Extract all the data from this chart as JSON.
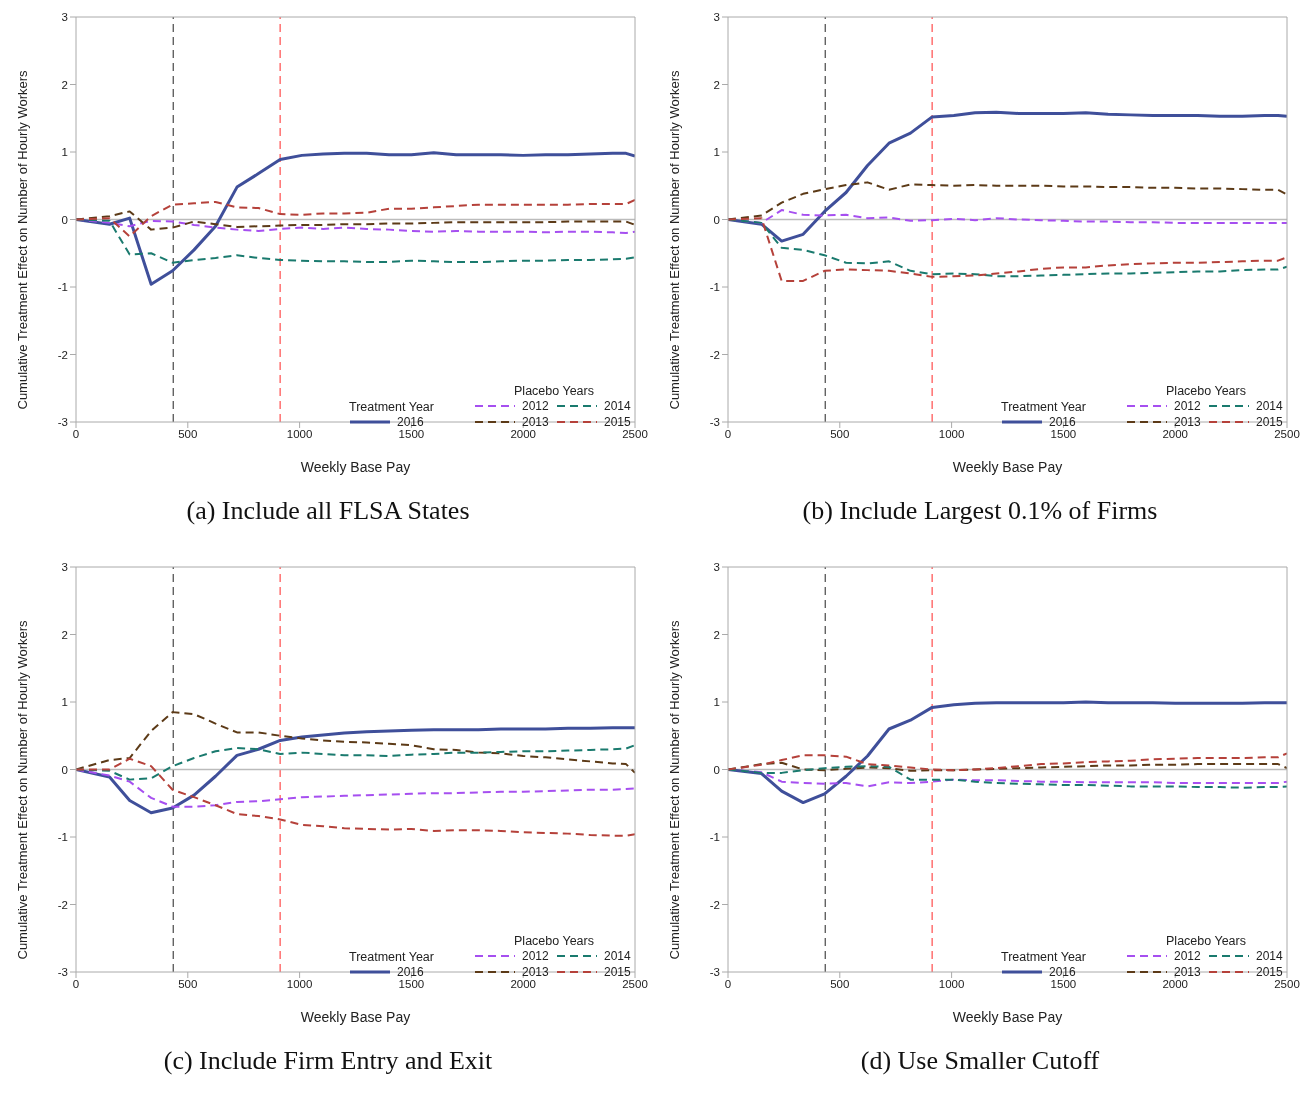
{
  "chart_data": [
    {
      "type": "line",
      "title": "(a) Include all FLSA States",
      "xlabel": "Weekly Base Pay",
      "ylabel": "Cumulative Treatment Effect on Number of Hourly Workers",
      "annotations": [
        "Treatment Year",
        "Placebo Years"
      ],
      "x": [
        0,
        150,
        240,
        336,
        432,
        528,
        624,
        720,
        816,
        913,
        1010,
        1105,
        1200,
        1300,
        1400,
        1500,
        1600,
        1700,
        1800,
        1900,
        2000,
        2100,
        2200,
        2300,
        2400,
        2460,
        2500
      ],
      "series": [
        {
          "name": "2016",
          "color": "#3f4f9a",
          "line_style": "solid",
          "values": [
            0,
            -0.07,
            0.02,
            -0.96,
            -0.76,
            -0.45,
            -0.1,
            0.48,
            0.68,
            0.89,
            0.95,
            0.97,
            0.98,
            0.98,
            0.96,
            0.96,
            0.99,
            0.96,
            0.96,
            0.96,
            0.95,
            0.96,
            0.96,
            0.97,
            0.98,
            0.98,
            0.94
          ]
        },
        {
          "name": "2012",
          "color": "#a64ff0",
          "line_style": "dashed",
          "values": [
            0,
            -0.05,
            -0.1,
            -0.02,
            -0.03,
            -0.08,
            -0.12,
            -0.15,
            -0.17,
            -0.14,
            -0.12,
            -0.14,
            -0.12,
            -0.14,
            -0.15,
            -0.17,
            -0.18,
            -0.17,
            -0.18,
            -0.18,
            -0.18,
            -0.19,
            -0.18,
            -0.18,
            -0.19,
            -0.2,
            -0.18
          ]
        },
        {
          "name": "2013",
          "color": "#5c3a17",
          "line_style": "dashed",
          "values": [
            0,
            0.05,
            0.12,
            -0.15,
            -0.12,
            -0.03,
            -0.07,
            -0.11,
            -0.1,
            -0.09,
            -0.08,
            -0.08,
            -0.07,
            -0.07,
            -0.06,
            -0.06,
            -0.05,
            -0.04,
            -0.04,
            -0.04,
            -0.04,
            -0.04,
            -0.03,
            -0.03,
            -0.03,
            -0.03,
            -0.08
          ]
        },
        {
          "name": "2014",
          "color": "#1a7a6e",
          "line_style": "dashed",
          "values": [
            0,
            -0.02,
            -0.52,
            -0.5,
            -0.64,
            -0.6,
            -0.57,
            -0.53,
            -0.57,
            -0.6,
            -0.61,
            -0.62,
            -0.62,
            -0.63,
            -0.63,
            -0.61,
            -0.62,
            -0.63,
            -0.63,
            -0.62,
            -0.61,
            -0.61,
            -0.6,
            -0.6,
            -0.59,
            -0.58,
            -0.56
          ]
        },
        {
          "name": "2015",
          "color": "#b5413a",
          "line_style": "dashed",
          "values": [
            0,
            0.02,
            -0.25,
            0.05,
            0.22,
            0.24,
            0.26,
            0.18,
            0.17,
            0.08,
            0.07,
            0.09,
            0.09,
            0.1,
            0.16,
            0.16,
            0.18,
            0.2,
            0.22,
            0.22,
            0.22,
            0.22,
            0.22,
            0.23,
            0.23,
            0.23,
            0.29
          ]
        }
      ],
      "ref_lines": [
        {
          "axis": "x",
          "value": 435,
          "color": "#555555",
          "line_style": "dashed"
        },
        {
          "axis": "x",
          "value": 913,
          "color": "#ff5a5a",
          "line_style": "dashed"
        },
        {
          "axis": "y",
          "value": 0,
          "color": "#bbbbbb",
          "line_style": "solid"
        }
      ],
      "xlim": [
        0,
        2500
      ],
      "xticks": [
        0,
        500,
        1000,
        1500,
        2000,
        2500
      ],
      "ylim": [
        -3,
        3
      ],
      "yticks": [
        -3,
        -2,
        -1,
        0,
        1,
        2,
        3
      ],
      "grid": false,
      "legend": "bottom right",
      "marker": "none"
    },
    {
      "type": "line",
      "title": "(b) Include Largest 0.1% of Firms",
      "xlabel": "Weekly Base Pay",
      "ylabel": "Cumulative Treatment Effect on Number of Hourly Workers",
      "annotations": [
        "Treatment Year",
        "Placebo Years"
      ],
      "x": [
        0,
        150,
        240,
        336,
        432,
        528,
        624,
        720,
        816,
        913,
        1010,
        1105,
        1200,
        1300,
        1400,
        1500,
        1600,
        1700,
        1800,
        1900,
        2000,
        2100,
        2200,
        2300,
        2400,
        2460,
        2500
      ],
      "series": [
        {
          "name": "2016",
          "color": "#3f4f9a",
          "line_style": "solid",
          "values": [
            0,
            -0.07,
            -0.32,
            -0.22,
            0.12,
            0.4,
            0.8,
            1.13,
            1.28,
            1.52,
            1.54,
            1.58,
            1.59,
            1.57,
            1.57,
            1.57,
            1.58,
            1.56,
            1.55,
            1.54,
            1.54,
            1.54,
            1.53,
            1.53,
            1.54,
            1.54,
            1.53
          ]
        },
        {
          "name": "2012",
          "color": "#a64ff0",
          "line_style": "dashed",
          "values": [
            0,
            -0.05,
            0.14,
            0.07,
            0.06,
            0.07,
            0.02,
            0.03,
            -0.02,
            -0.01,
            0.01,
            -0.01,
            0.02,
            0,
            -0.01,
            -0.02,
            -0.03,
            -0.03,
            -0.04,
            -0.04,
            -0.05,
            -0.05,
            -0.05,
            -0.05,
            -0.05,
            -0.05,
            -0.05
          ]
        },
        {
          "name": "2013",
          "color": "#5c3a17",
          "line_style": "dashed",
          "values": [
            0,
            0.06,
            0.25,
            0.38,
            0.45,
            0.51,
            0.55,
            0.44,
            0.52,
            0.51,
            0.5,
            0.51,
            0.5,
            0.5,
            0.5,
            0.49,
            0.49,
            0.48,
            0.48,
            0.47,
            0.47,
            0.46,
            0.46,
            0.45,
            0.44,
            0.44,
            0.37
          ]
        },
        {
          "name": "2014",
          "color": "#1a7a6e",
          "line_style": "dashed",
          "values": [
            0,
            -0.05,
            -0.42,
            -0.45,
            -0.53,
            -0.64,
            -0.65,
            -0.62,
            -0.76,
            -0.81,
            -0.8,
            -0.81,
            -0.84,
            -0.84,
            -0.83,
            -0.82,
            -0.81,
            -0.8,
            -0.8,
            -0.79,
            -0.78,
            -0.77,
            -0.77,
            -0.75,
            -0.74,
            -0.74,
            -0.7
          ]
        },
        {
          "name": "2015",
          "color": "#b5413a",
          "line_style": "dashed",
          "values": [
            0,
            0.02,
            -0.91,
            -0.91,
            -0.76,
            -0.74,
            -0.75,
            -0.76,
            -0.8,
            -0.85,
            -0.84,
            -0.83,
            -0.8,
            -0.77,
            -0.73,
            -0.71,
            -0.71,
            -0.68,
            -0.66,
            -0.65,
            -0.64,
            -0.64,
            -0.63,
            -0.62,
            -0.61,
            -0.61,
            -0.56
          ]
        }
      ],
      "ref_lines": [
        {
          "axis": "x",
          "value": 435,
          "color": "#555555",
          "line_style": "dashed"
        },
        {
          "axis": "x",
          "value": 913,
          "color": "#ff5a5a",
          "line_style": "dashed"
        },
        {
          "axis": "y",
          "value": 0,
          "color": "#bbbbbb",
          "line_style": "solid"
        }
      ],
      "xlim": [
        0,
        2500
      ],
      "xticks": [
        0,
        500,
        1000,
        1500,
        2000,
        2500
      ],
      "ylim": [
        -3,
        3
      ],
      "yticks": [
        -3,
        -2,
        -1,
        0,
        1,
        2,
        3
      ],
      "grid": false,
      "legend": "bottom right",
      "marker": "none"
    },
    {
      "type": "line",
      "title": "(c) Include Firm Entry and Exit",
      "xlabel": "Weekly Base Pay",
      "ylabel": "Cumulative Treatment Effect on Number of Hourly Workers",
      "annotations": [
        "Treatment Year",
        "Placebo Years"
      ],
      "x": [
        0,
        150,
        240,
        336,
        432,
        528,
        624,
        720,
        816,
        913,
        1010,
        1105,
        1200,
        1300,
        1400,
        1500,
        1600,
        1700,
        1800,
        1900,
        2000,
        2100,
        2200,
        2300,
        2400,
        2460,
        2500
      ],
      "series": [
        {
          "name": "2016",
          "color": "#3f4f9a",
          "line_style": "solid",
          "values": [
            0,
            -0.11,
            -0.46,
            -0.64,
            -0.57,
            -0.38,
            -0.1,
            0.21,
            0.3,
            0.43,
            0.48,
            0.51,
            0.54,
            0.56,
            0.57,
            0.58,
            0.59,
            0.59,
            0.59,
            0.6,
            0.6,
            0.6,
            0.61,
            0.61,
            0.62,
            0.62,
            0.62
          ]
        },
        {
          "name": "2012",
          "color": "#a64ff0",
          "line_style": "dashed",
          "values": [
            0,
            -0.09,
            -0.18,
            -0.42,
            -0.55,
            -0.55,
            -0.53,
            -0.48,
            -0.47,
            -0.44,
            -0.41,
            -0.4,
            -0.39,
            -0.38,
            -0.37,
            -0.36,
            -0.35,
            -0.35,
            -0.34,
            -0.33,
            -0.33,
            -0.32,
            -0.31,
            -0.3,
            -0.3,
            -0.29,
            -0.28
          ]
        },
        {
          "name": "2013",
          "color": "#5c3a17",
          "line_style": "dashed",
          "values": [
            0,
            0.14,
            0.17,
            0.57,
            0.85,
            0.82,
            0.68,
            0.55,
            0.55,
            0.5,
            0.46,
            0.43,
            0.41,
            0.4,
            0.38,
            0.36,
            0.3,
            0.29,
            0.25,
            0.24,
            0.2,
            0.18,
            0.15,
            0.12,
            0.09,
            0.08,
            -0.05
          ]
        },
        {
          "name": "2014",
          "color": "#1a7a6e",
          "line_style": "dashed",
          "values": [
            0,
            -0.02,
            -0.15,
            -0.13,
            0.05,
            0.17,
            0.27,
            0.32,
            0.3,
            0.23,
            0.25,
            0.23,
            0.21,
            0.21,
            0.2,
            0.22,
            0.23,
            0.25,
            0.25,
            0.26,
            0.27,
            0.27,
            0.28,
            0.29,
            0.3,
            0.31,
            0.36
          ]
        },
        {
          "name": "2015",
          "color": "#b5413a",
          "line_style": "dashed",
          "values": [
            0,
            0,
            0.16,
            0.05,
            -0.3,
            -0.41,
            -0.53,
            -0.66,
            -0.69,
            -0.74,
            -0.82,
            -0.84,
            -0.87,
            -0.88,
            -0.89,
            -0.88,
            -0.91,
            -0.9,
            -0.9,
            -0.91,
            -0.93,
            -0.94,
            -0.95,
            -0.97,
            -0.98,
            -0.98,
            -0.96
          ]
        }
      ],
      "ref_lines": [
        {
          "axis": "x",
          "value": 435,
          "color": "#555555",
          "line_style": "dashed"
        },
        {
          "axis": "x",
          "value": 913,
          "color": "#ff5a5a",
          "line_style": "dashed"
        },
        {
          "axis": "y",
          "value": 0,
          "color": "#bbbbbb",
          "line_style": "solid"
        }
      ],
      "xlim": [
        0,
        2500
      ],
      "xticks": [
        0,
        500,
        1000,
        1500,
        2000,
        2500
      ],
      "ylim": [
        -3,
        3
      ],
      "yticks": [
        -3,
        -2,
        -1,
        0,
        1,
        2,
        3
      ],
      "grid": false,
      "legend": "bottom right",
      "marker": "none"
    },
    {
      "type": "line",
      "title": "(d) Use Smaller Cutoff",
      "xlabel": "Weekly Base Pay",
      "ylabel": "Cumulative Treatment Effect on Number of Hourly Workers",
      "annotations": [
        "Treatment Year",
        "Placebo Years"
      ],
      "x": [
        0,
        150,
        240,
        336,
        432,
        528,
        624,
        720,
        816,
        913,
        1010,
        1105,
        1200,
        1300,
        1400,
        1500,
        1600,
        1700,
        1800,
        1900,
        2000,
        2100,
        2200,
        2300,
        2400,
        2460,
        2500
      ],
      "series": [
        {
          "name": "2016",
          "color": "#3f4f9a",
          "line_style": "solid",
          "values": [
            0,
            -0.06,
            -0.32,
            -0.49,
            -0.36,
            -0.1,
            0.2,
            0.6,
            0.73,
            0.92,
            0.96,
            0.98,
            0.99,
            0.99,
            0.99,
            0.99,
            1.0,
            0.99,
            0.99,
            0.99,
            0.98,
            0.98,
            0.98,
            0.98,
            0.99,
            0.99,
            0.99
          ]
        },
        {
          "name": "2012",
          "color": "#a64ff0",
          "line_style": "dashed",
          "values": [
            0,
            -0.04,
            -0.18,
            -0.2,
            -0.21,
            -0.2,
            -0.25,
            -0.19,
            -0.2,
            -0.18,
            -0.15,
            -0.16,
            -0.16,
            -0.17,
            -0.18,
            -0.18,
            -0.19,
            -0.19,
            -0.19,
            -0.19,
            -0.2,
            -0.2,
            -0.2,
            -0.2,
            -0.2,
            -0.2,
            -0.18
          ]
        },
        {
          "name": "2013",
          "color": "#5c3a17",
          "line_style": "dashed",
          "values": [
            0,
            0.08,
            0.1,
            0,
            -0.01,
            0.01,
            0.03,
            0.02,
            -0.02,
            -0.01,
            -0.01,
            0,
            0.01,
            0.02,
            0.03,
            0.04,
            0.05,
            0.06,
            0.06,
            0.07,
            0.07,
            0.08,
            0.08,
            0.08,
            0.08,
            0.08,
            0.02
          ]
        },
        {
          "name": "2014",
          "color": "#1a7a6e",
          "line_style": "dashed",
          "values": [
            0,
            -0.05,
            -0.05,
            -0.01,
            0.02,
            0.04,
            0.05,
            0.04,
            -0.15,
            -0.15,
            -0.15,
            -0.18,
            -0.2,
            -0.21,
            -0.22,
            -0.23,
            -0.23,
            -0.24,
            -0.25,
            -0.25,
            -0.25,
            -0.26,
            -0.26,
            -0.27,
            -0.26,
            -0.26,
            -0.25
          ]
        },
        {
          "name": "2015",
          "color": "#b5413a",
          "line_style": "dashed",
          "values": [
            0,
            0.07,
            0.14,
            0.21,
            0.21,
            0.19,
            0.08,
            0.06,
            0.03,
            0,
            -0.01,
            0,
            0.02,
            0.05,
            0.08,
            0.09,
            0.11,
            0.12,
            0.13,
            0.15,
            0.16,
            0.17,
            0.17,
            0.17,
            0.18,
            0.18,
            0.24
          ]
        }
      ],
      "ref_lines": [
        {
          "axis": "x",
          "value": 435,
          "color": "#555555",
          "line_style": "dashed"
        },
        {
          "axis": "x",
          "value": 913,
          "color": "#ff5a5a",
          "line_style": "dashed"
        },
        {
          "axis": "y",
          "value": 0,
          "color": "#bbbbbb",
          "line_style": "solid"
        }
      ],
      "xlim": [
        0,
        2500
      ],
      "xticks": [
        0,
        500,
        1000,
        1500,
        2000,
        2500
      ],
      "ylim": [
        -3,
        3
      ],
      "yticks": [
        -3,
        -2,
        -1,
        0,
        1,
        2,
        3
      ],
      "grid": false,
      "legend": "bottom right",
      "marker": "none"
    }
  ]
}
